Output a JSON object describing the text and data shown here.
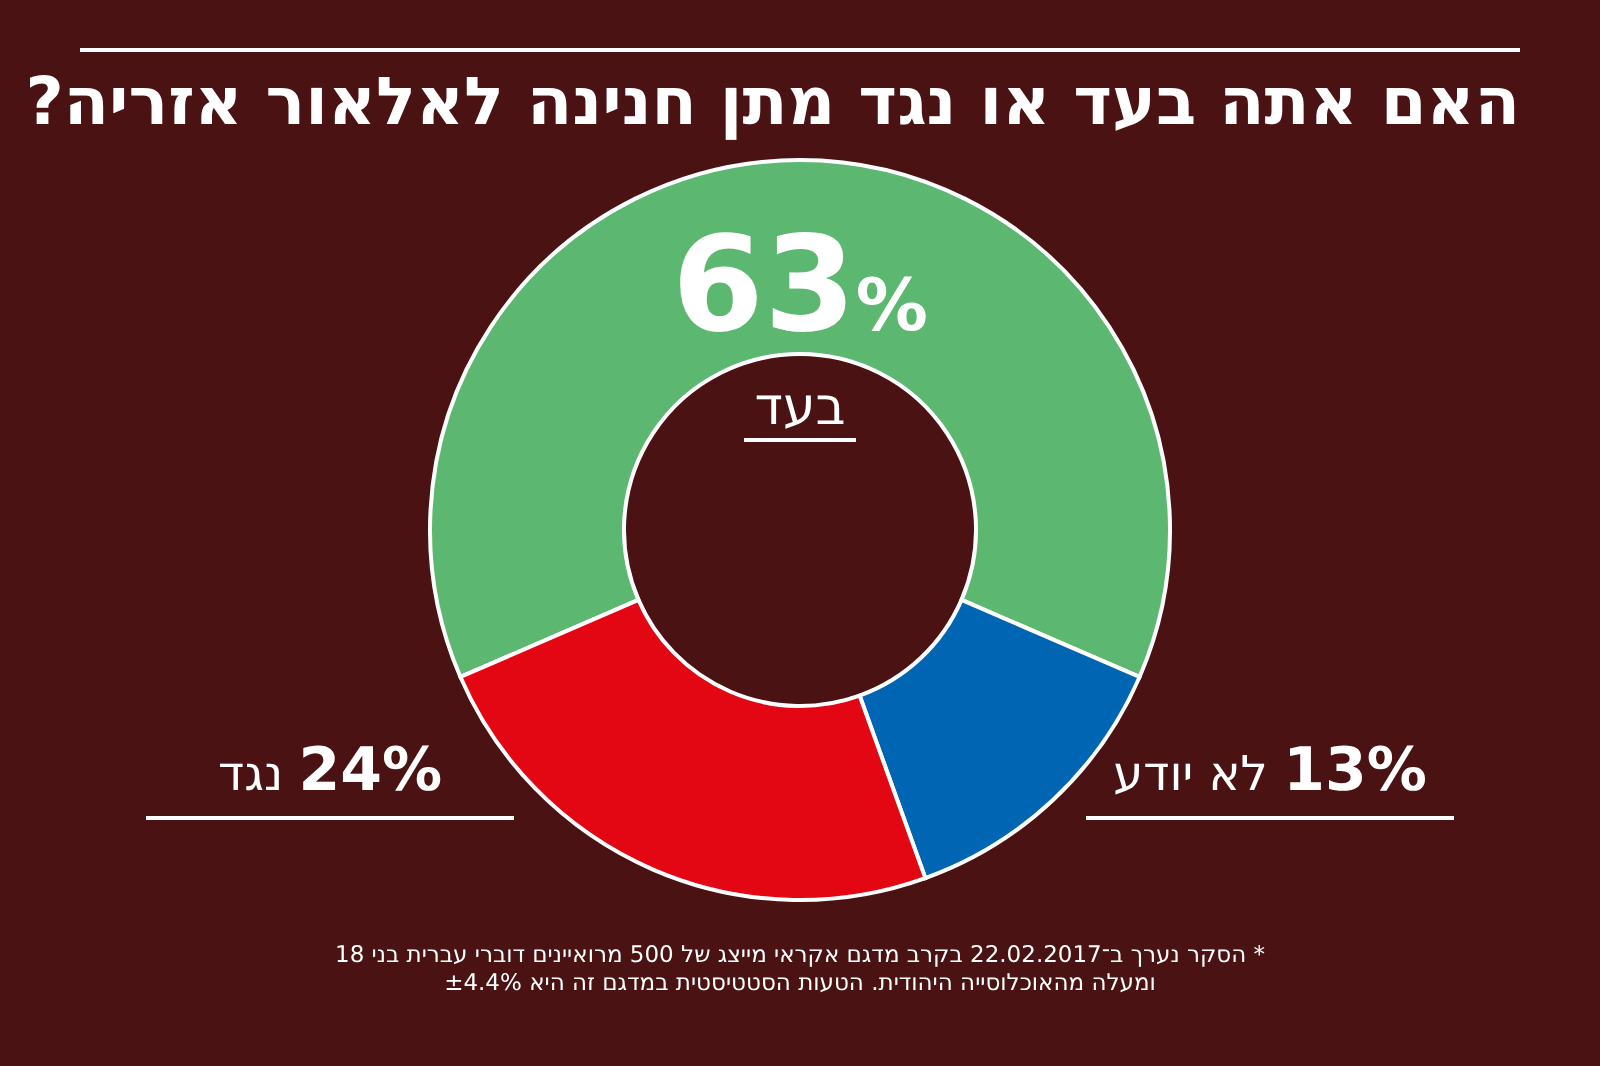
{
  "chart_data": {
    "type": "donut",
    "title": "האם אתה בעד או נגד מתן חנינה לאלאור אזריה?",
    "categories": [
      "בעד",
      "לא יודע",
      "נגד"
    ],
    "values": [
      63,
      13,
      24
    ],
    "colors": [
      "#5cb870",
      "#0066b3",
      "#e30613"
    ],
    "value_labels": [
      "63%",
      "13%",
      "24%"
    ],
    "annotations": [
      "* הסקר נערך ב־22.02.2017 בקרב מדגם אקראי מייצג של 500 מרואיינים דוברי עברית בני 18 ומעלה מהאוכלוסייה היהודית. הטעות הסטטיסטית במדגם זה היא ±4.4%"
    ]
  }
}
